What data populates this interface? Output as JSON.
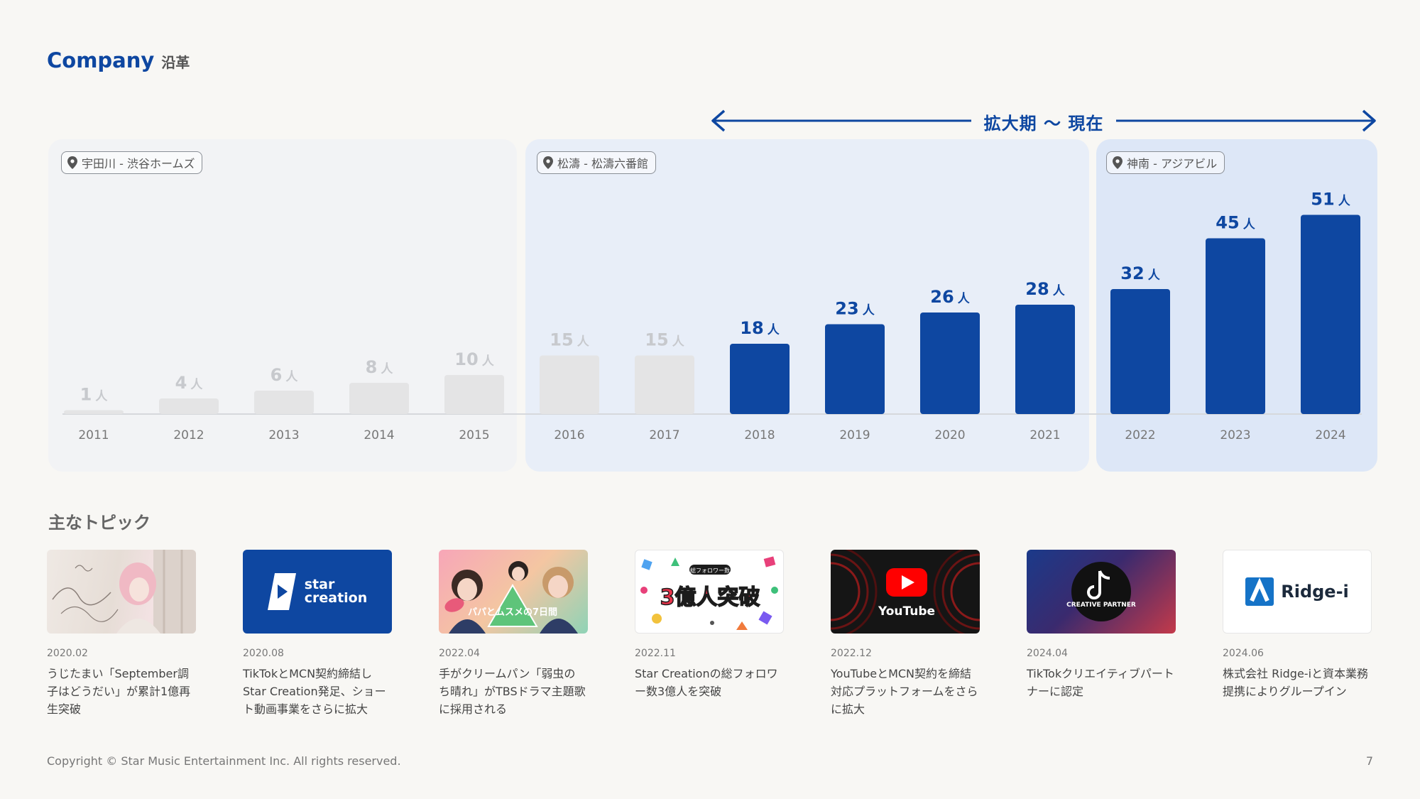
{
  "header": {
    "title_en": "Company",
    "title_jp": "沿革"
  },
  "period_label": "拡大期 〜 現在",
  "locations": [
    {
      "label": "宇田川 - 渋谷ホームズ"
    },
    {
      "label": "松濤 - 松濤六番館"
    },
    {
      "label": "神南 - アジアビル"
    }
  ],
  "chart_data": {
    "type": "bar",
    "categories": [
      "2011",
      "2012",
      "2013",
      "2014",
      "2015",
      "2016",
      "2017",
      "2018",
      "2019",
      "2020",
      "2021",
      "2022",
      "2023",
      "2024"
    ],
    "values": [
      1,
      4,
      6,
      8,
      10,
      15,
      15,
      18,
      23,
      26,
      28,
      32,
      45,
      51
    ],
    "unit": "人",
    "highlighted_from": "2018",
    "colors": {
      "highlight": "#0e47a1",
      "muted": "#e4e4e5",
      "muted_label": "#c7c9cd"
    }
  },
  "topics": {
    "title": "主なトピック",
    "items": [
      {
        "date": "2020.02",
        "text": "うじたまい「September調子はどうだい」が累計1億再生突破",
        "image": "september-artwork"
      },
      {
        "date": "2020.08",
        "text": "TikTokとMCN契約締結しStar Creation発足、ショート動画事業をさらに拡大",
        "image": "star-creation-logo",
        "logo_text": [
          "star",
          "creation"
        ]
      },
      {
        "date": "2022.04",
        "text": "手がクリームパン「弱虫の ち晴れ」がTBSドラマ主題歌に採用される",
        "image": "drama-poster",
        "poster_text": "パパとムスメの7日間"
      },
      {
        "date": "2022.11",
        "text": "Star Creationの総フォロワー数3億人を突破",
        "image": "followers-banner",
        "banner_text": "3億人突破",
        "banner_sub": "総フォロワー数"
      },
      {
        "date": "2022.12",
        "text": "YouTubeとMCN契約を締結 対応プラットフォームをさらに拡大",
        "image": "youtube-logo",
        "logo_text": "YouTube"
      },
      {
        "date": "2024.04",
        "text": "TikTokクリエイティブパートナーに認定",
        "image": "tiktok-creative-partner",
        "badge_text": "CREATIVE PARTNER"
      },
      {
        "date": "2024.06",
        "text": "株式会社 Ridge-iと資本業務提携によりグループイン",
        "image": "ridge-i-logo",
        "logo_text": "Ridge-i"
      }
    ]
  },
  "footer": {
    "copyright": "Copyright © Star Music Entertainment Inc. All rights reserved.",
    "page": "7"
  }
}
